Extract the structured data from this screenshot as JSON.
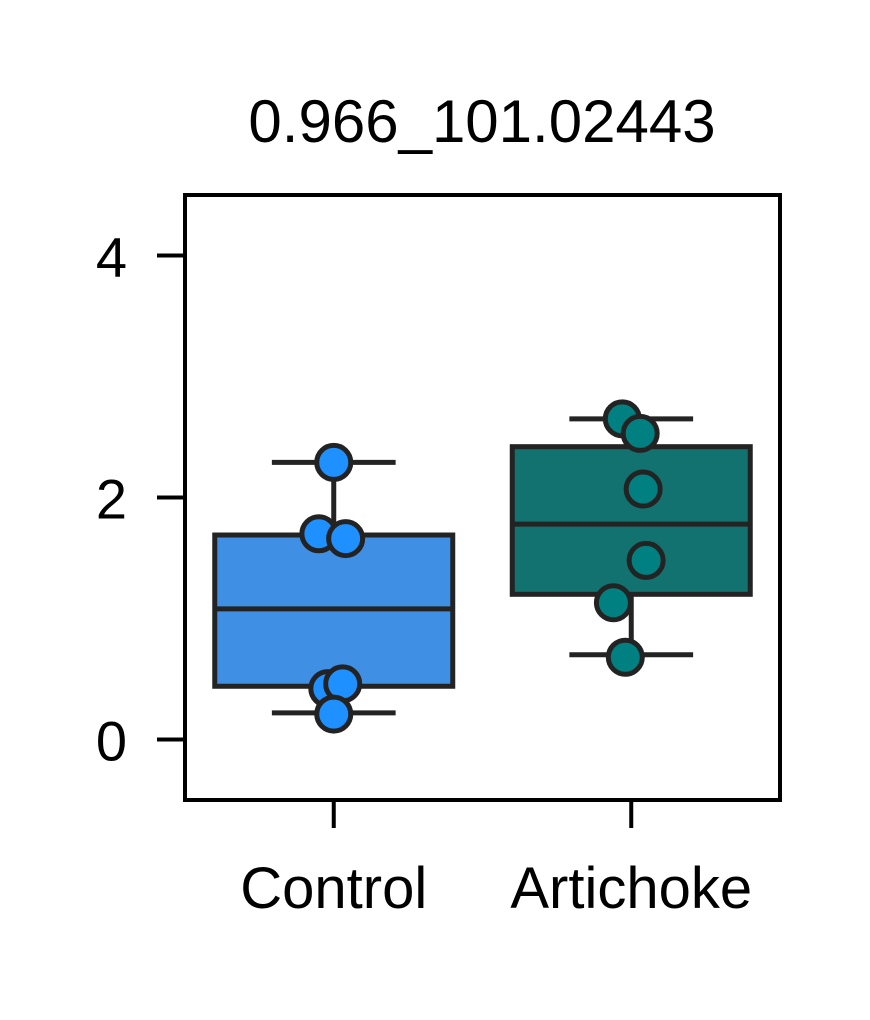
{
  "chart_data": {
    "type": "box",
    "title": "0.966_101.02443",
    "xlabel": "",
    "ylabel": "",
    "ylim": [
      -0.5,
      4.5
    ],
    "yticks": [
      0,
      2,
      4
    ],
    "ytick_labels": [
      "0",
      "2",
      "4"
    ],
    "grid": false,
    "categories": [
      "Control",
      "Artichoke"
    ],
    "groups": [
      {
        "name": "Control",
        "box_color": "#3f8fe5",
        "point_color": "#1e90ff",
        "whisker_low": 0.22,
        "q1": 0.44,
        "median": 1.08,
        "q3": 1.69,
        "whisker_high": 2.29,
        "points": [
          {
            "y": 2.29,
            "jitter": 0.0
          },
          {
            "y": 1.7,
            "jitter": -0.05
          },
          {
            "y": 1.66,
            "jitter": 0.04
          },
          {
            "y": 0.42,
            "jitter": -0.02
          },
          {
            "y": 0.46,
            "jitter": 0.03
          },
          {
            "y": 0.21,
            "jitter": 0.0
          }
        ]
      },
      {
        "name": "Artichoke",
        "box_color": "#127270",
        "point_color": "#008080",
        "whisker_low": 0.7,
        "q1": 1.2,
        "median": 1.78,
        "q3": 2.42,
        "whisker_high": 2.65,
        "points": [
          {
            "y": 2.65,
            "jitter": -0.03
          },
          {
            "y": 2.53,
            "jitter": 0.03
          },
          {
            "y": 2.07,
            "jitter": 0.04
          },
          {
            "y": 1.48,
            "jitter": 0.05
          },
          {
            "y": 1.13,
            "jitter": -0.06
          },
          {
            "y": 0.68,
            "jitter": -0.02
          }
        ]
      }
    ]
  }
}
